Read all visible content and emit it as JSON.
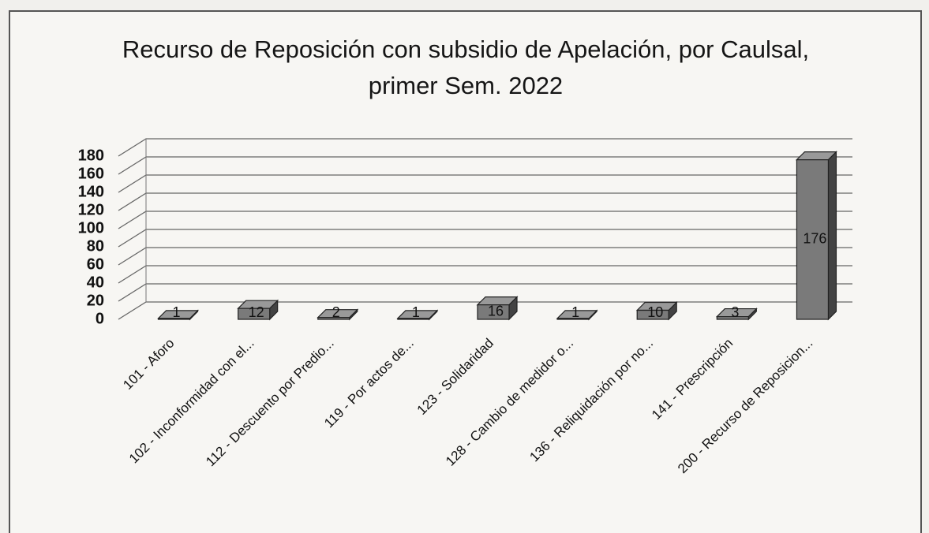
{
  "chart_data": {
    "type": "bar3d",
    "title": "Recurso de Reposición con subsidio de Apelación, por Caulsal, primer Sem. 2022",
    "categories": [
      "101 - Aforo",
      "102 - Inconformidad con el...",
      "112 - Descuento por Predio...",
      "119 - Por actos de...",
      "123 - Solidaridad",
      "128 - Cambio de medidor o...",
      "136 - Reliquidación por no...",
      "141 - Prescripción",
      "200 - Recurso de Reposicion..."
    ],
    "values": [
      1,
      12,
      2,
      1,
      16,
      1,
      10,
      3,
      176
    ],
    "color": "#7a7a7a",
    "ylim": [
      0,
      180
    ],
    "yticks": [
      0,
      20,
      40,
      60,
      80,
      100,
      120,
      140,
      160,
      180
    ],
    "grid": true,
    "data_labels": true
  }
}
